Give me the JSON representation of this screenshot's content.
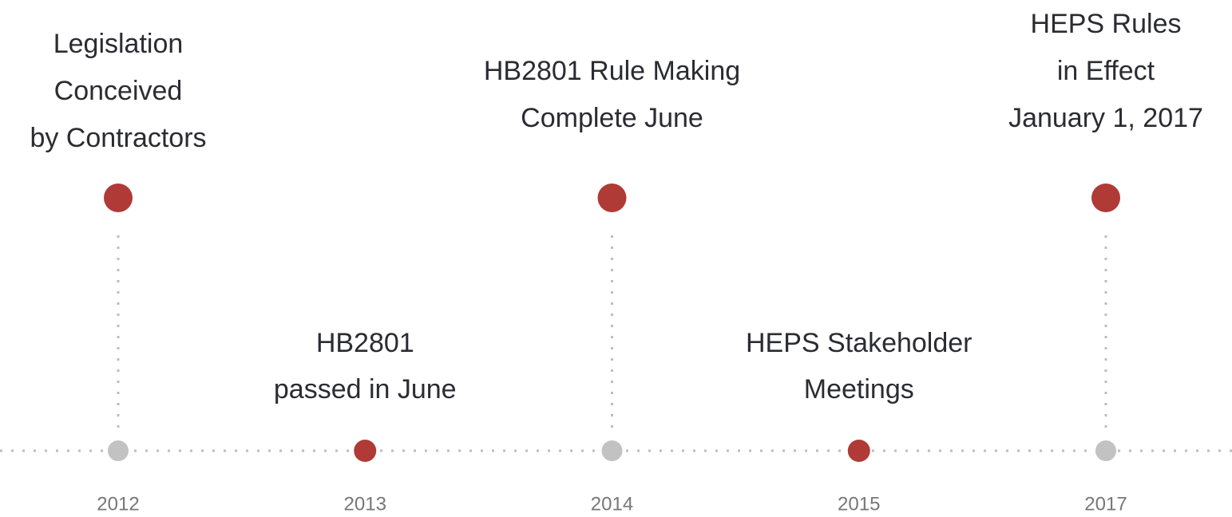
{
  "timeline": {
    "events": [
      {
        "year": "2012",
        "lines": [
          "Legislation",
          "Conceived",
          "by Contractors"
        ]
      },
      {
        "year": "2013",
        "lines": [
          "HB2801",
          "passed in June"
        ]
      },
      {
        "year": "2014",
        "lines": [
          "HB2801 Rule Making",
          "Complete June"
        ]
      },
      {
        "year": "2015",
        "lines": [
          "HEPS Stakeholder",
          "Meetings"
        ]
      },
      {
        "year": "2017",
        "lines": [
          "HEPS Rules",
          "in Effect",
          "January 1, 2017"
        ]
      }
    ]
  }
}
